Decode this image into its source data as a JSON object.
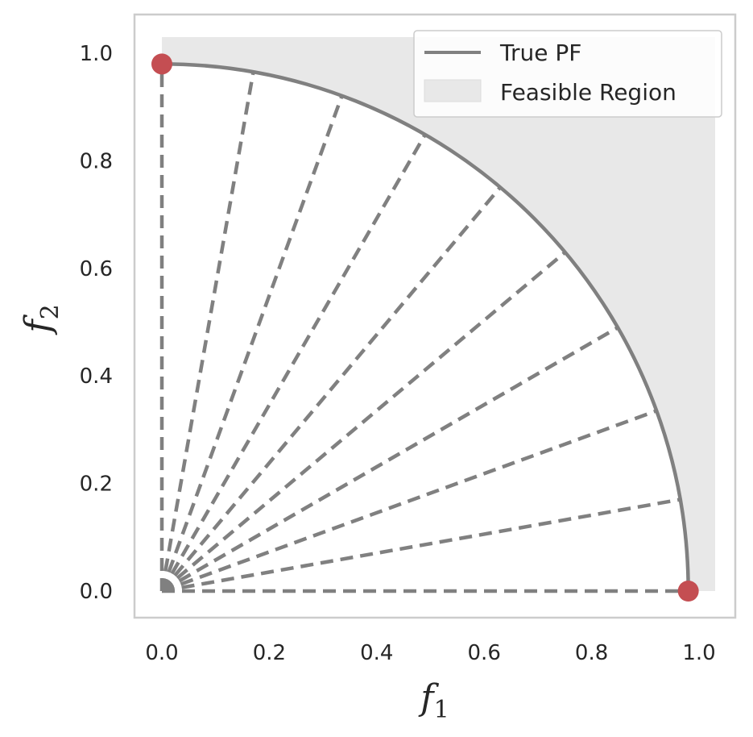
{
  "chart_data": {
    "type": "line",
    "title": "",
    "xlabel": "f",
    "xlabel_sub": "1",
    "ylabel": "f",
    "ylabel_sub": "2",
    "xlim": [
      -0.05,
      1.05
    ],
    "ylim": [
      -0.05,
      1.05
    ],
    "xticks": [
      "0.0",
      "0.2",
      "0.4",
      "0.6",
      "0.8",
      "1.0"
    ],
    "yticks": [
      "0.0",
      "0.2",
      "0.4",
      "0.6",
      "0.8",
      "1.0"
    ],
    "grid": false,
    "legend_position": "top-right",
    "colors": {
      "pf_line": "#808080",
      "feasible_fill": "#e8e8e8",
      "rays": "#808080",
      "points": "#c44e52",
      "frame": "#cccccc"
    },
    "series": [
      {
        "name": "True PF",
        "kind": "line",
        "shape": "quarter-circle",
        "radius": 0.98
      },
      {
        "name": "Feasible Region",
        "kind": "area",
        "x_range": [
          0.0,
          1.03
        ],
        "y_range": [
          0.0,
          1.03
        ]
      },
      {
        "kind": "dashed-rays",
        "origin": [
          0.0,
          0.0
        ],
        "angles_deg": [
          0,
          10,
          20,
          30,
          40,
          50,
          60,
          70,
          80,
          90
        ]
      },
      {
        "kind": "scatter",
        "points": [
          [
            0.0,
            0.98
          ],
          [
            0.98,
            0.0
          ]
        ]
      }
    ]
  }
}
